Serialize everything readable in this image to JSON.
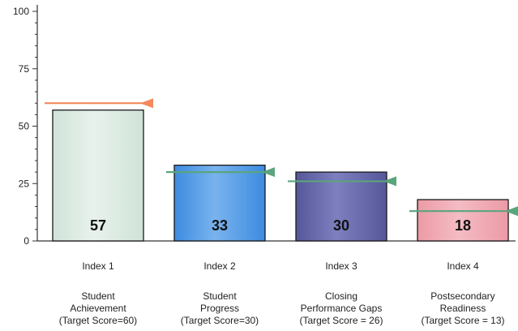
{
  "chart_data": {
    "type": "bar",
    "title": "",
    "xlabel": "",
    "ylabel": "",
    "ylim": [
      0,
      100
    ],
    "yticks": [
      0,
      25,
      50,
      75,
      100
    ],
    "grid": false,
    "legend": "none",
    "categories": [
      {
        "index": "Index 1",
        "name_lines": [
          "Student",
          "Achievement",
          "(Target Score=60)"
        ]
      },
      {
        "index": "Index 2",
        "name_lines": [
          "Student",
          "Progress",
          "(Target Score=30)"
        ]
      },
      {
        "index": "Index 3",
        "name_lines": [
          "Closing",
          "Performance Gaps",
          "(Target Score = 26)"
        ]
      },
      {
        "index": "Index 4",
        "name_lines": [
          "Postsecondary",
          "Readiness",
          "(Target Score = 13)"
        ]
      }
    ],
    "values": [
      57,
      33,
      30,
      18
    ],
    "value_labels": [
      "57",
      "33",
      "30",
      "18"
    ],
    "targets": [
      60,
      30,
      26,
      13
    ],
    "colors": {
      "bars": [
        "#cfe3d9",
        "#3d8be0",
        "#55579a",
        "#ec9aa5"
      ],
      "bar_highlight": [
        "#e8f2ec",
        "#79b3ee",
        "#7d7fbf",
        "#f4bcc4"
      ],
      "targets": [
        "#f3895c",
        "#5aa57c",
        "#5aa57c",
        "#5aa57c"
      ],
      "axis": "#333333"
    }
  }
}
